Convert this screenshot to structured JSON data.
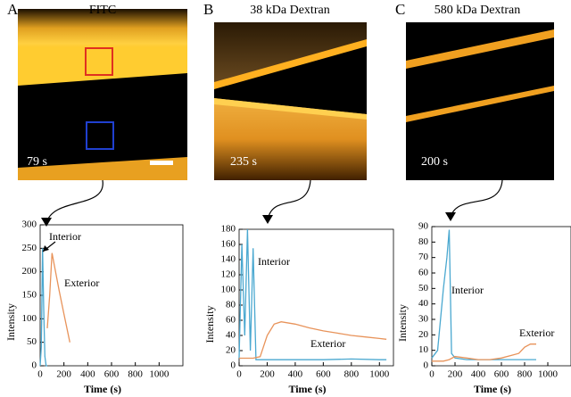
{
  "chart_data": [
    {
      "type": "line",
      "panel": "A",
      "image_title": "FITC",
      "image_time": "79 s",
      "xlabel": "Time (s)",
      "ylabel": "Intensity",
      "xlim": [
        0,
        1200
      ],
      "xticks": [
        0,
        200,
        400,
        600,
        800,
        1000
      ],
      "ylim": [
        0,
        300
      ],
      "yticks": [
        0,
        50,
        100,
        150,
        200,
        250,
        300
      ],
      "annotations": [
        "Interior",
        "Exterior"
      ],
      "series": [
        {
          "name": "Interior",
          "color": "#4aa8d0",
          "x": [
            0,
            10,
            20,
            30,
            40,
            50,
            60
          ],
          "values": [
            0,
            40,
            250,
            120,
            20,
            0,
            0
          ]
        },
        {
          "name": "Exterior",
          "color": "#e8935a",
          "x": [
            60,
            80,
            100,
            130,
            160,
            200,
            250
          ],
          "values": [
            80,
            150,
            240,
            200,
            160,
            110,
            50
          ]
        }
      ]
    },
    {
      "type": "line",
      "panel": "B",
      "image_title": "38 kDa Dextran",
      "image_time": "235 s",
      "xlabel": "Time (s)",
      "ylabel": "Intensity",
      "xlim": [
        0,
        1100
      ],
      "xticks": [
        0,
        200,
        400,
        600,
        800,
        1000
      ],
      "ylim": [
        0,
        180
      ],
      "yticks": [
        0,
        20,
        40,
        60,
        80,
        100,
        120,
        140,
        160,
        180
      ],
      "annotations": [
        "Interior",
        "Exterior"
      ],
      "series": [
        {
          "name": "Interior",
          "color": "#4aa8d0",
          "x": [
            0,
            20,
            40,
            60,
            80,
            100,
            120,
            200,
            400,
            600,
            800,
            1000,
            1050
          ],
          "values": [
            10,
            160,
            40,
            180,
            20,
            155,
            8,
            8,
            8,
            8,
            9,
            8,
            8
          ]
        },
        {
          "name": "Exterior",
          "color": "#e8935a",
          "x": [
            0,
            100,
            150,
            200,
            250,
            300,
            400,
            500,
            600,
            700,
            800,
            900,
            1000,
            1050
          ],
          "values": [
            10,
            10,
            12,
            40,
            55,
            58,
            55,
            50,
            46,
            43,
            40,
            38,
            36,
            35
          ]
        }
      ]
    },
    {
      "type": "line",
      "panel": "C",
      "image_title": "580 kDa Dextran",
      "image_time": "200 s",
      "xlabel": "Time (s)",
      "ylabel": "Intensity",
      "xlim": [
        0,
        1200
      ],
      "xticks": [
        0,
        200,
        400,
        600,
        800,
        1000
      ],
      "ylim": [
        0,
        90
      ],
      "yticks": [
        0,
        10,
        20,
        30,
        40,
        50,
        60,
        70,
        80,
        90
      ],
      "annotations": [
        "Interior",
        "Exterior"
      ],
      "series": [
        {
          "name": "Interior",
          "color": "#4aa8d0",
          "x": [
            0,
            50,
            100,
            130,
            150,
            170,
            200,
            300,
            500,
            700,
            900
          ],
          "values": [
            5,
            10,
            50,
            70,
            88,
            8,
            5,
            4,
            4,
            4,
            4
          ]
        },
        {
          "name": "Exterior",
          "color": "#e8935a",
          "x": [
            0,
            100,
            150,
            200,
            300,
            400,
            500,
            600,
            700,
            750,
            800,
            850,
            900
          ],
          "values": [
            3,
            3,
            4,
            6,
            5,
            4,
            4,
            5,
            7,
            8,
            12,
            14,
            14
          ]
        }
      ]
    }
  ]
}
